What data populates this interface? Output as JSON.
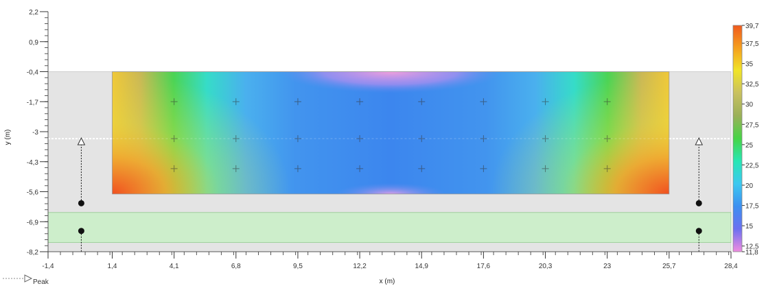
{
  "chart_data": {
    "type": "heatmap",
    "xlabel": "x (m)",
    "ylabel": "y (m)",
    "xlim": [
      -1.4,
      28.4
    ],
    "ylim": [
      -8.2,
      2.2
    ],
    "x_ticks": [
      "-1,4",
      "1,4",
      "4,1",
      "6,8",
      "9,5",
      "12,2",
      "14,9",
      "17,6",
      "20,3",
      "23",
      "25,7",
      "28,4"
    ],
    "x_tick_values": [
      -1.4,
      1.4,
      4.1,
      6.8,
      9.5,
      12.2,
      14.9,
      17.6,
      20.3,
      23,
      25.7,
      28.4
    ],
    "y_ticks": [
      "2,2",
      "0,9",
      "-0,4",
      "-1,7",
      "-3",
      "-4,3",
      "-5,6",
      "-6,9",
      "-8,2"
    ],
    "y_tick_values": [
      2.2,
      0.9,
      -0.4,
      -1.7,
      -3,
      -4.3,
      -5.6,
      -6.9,
      -8.2
    ],
    "colorbar": {
      "min": 11.8,
      "max": 39.7,
      "labels": [
        "39,7",
        "37,5",
        "35",
        "32,5",
        "30",
        "27,5",
        "25",
        "22,5",
        "20",
        "17,5",
        "15",
        "12,5",
        "11,8"
      ],
      "values": [
        39.7,
        37.5,
        35,
        32.5,
        30,
        27.5,
        25,
        22.5,
        20,
        17.5,
        15,
        12.5,
        11.8
      ]
    },
    "regions": {
      "grey_band_y": [
        -8.2,
        -0.4
      ],
      "green_band_y": [
        -7.8,
        -6.5
      ],
      "heatmap_x": [
        1.4,
        25.7
      ],
      "heatmap_y": [
        -5.7,
        -0.4
      ],
      "dashed_line_y": -3.3
    },
    "sensor_points": [
      {
        "x": 4.1,
        "y": -1.7
      },
      {
        "x": 6.8,
        "y": -1.7
      },
      {
        "x": 9.5,
        "y": -1.7
      },
      {
        "x": 12.2,
        "y": -1.7
      },
      {
        "x": 14.9,
        "y": -1.7
      },
      {
        "x": 17.6,
        "y": -1.7
      },
      {
        "x": 20.3,
        "y": -1.7
      },
      {
        "x": 23,
        "y": -1.7
      },
      {
        "x": 4.1,
        "y": -3.3
      },
      {
        "x": 6.8,
        "y": -3.3
      },
      {
        "x": 9.5,
        "y": -3.3
      },
      {
        "x": 12.2,
        "y": -3.3
      },
      {
        "x": 14.9,
        "y": -3.3
      },
      {
        "x": 17.6,
        "y": -3.3
      },
      {
        "x": 20.3,
        "y": -3.3
      },
      {
        "x": 23,
        "y": -3.3
      },
      {
        "x": 4.1,
        "y": -4.6
      },
      {
        "x": 6.8,
        "y": -4.6
      },
      {
        "x": 9.5,
        "y": -4.6
      },
      {
        "x": 12.2,
        "y": -4.6
      },
      {
        "x": 14.9,
        "y": -4.6
      },
      {
        "x": 17.6,
        "y": -4.6
      },
      {
        "x": 20.3,
        "y": -4.6
      },
      {
        "x": 23,
        "y": -4.6
      }
    ],
    "sources": [
      {
        "x": 0.05,
        "dots_y": [
          -6.1,
          -7.3
        ],
        "arrow_tip_y": -3.3
      },
      {
        "x": 27.0,
        "dots_y": [
          -6.1,
          -7.3
        ],
        "arrow_tip_y": -3.3
      }
    ],
    "legend": {
      "peak_label": "Peak"
    }
  },
  "colors": {
    "grey_band": "#e4e4e4",
    "green_band": "#cdeecb",
    "dashed_line": "#ffffff"
  }
}
